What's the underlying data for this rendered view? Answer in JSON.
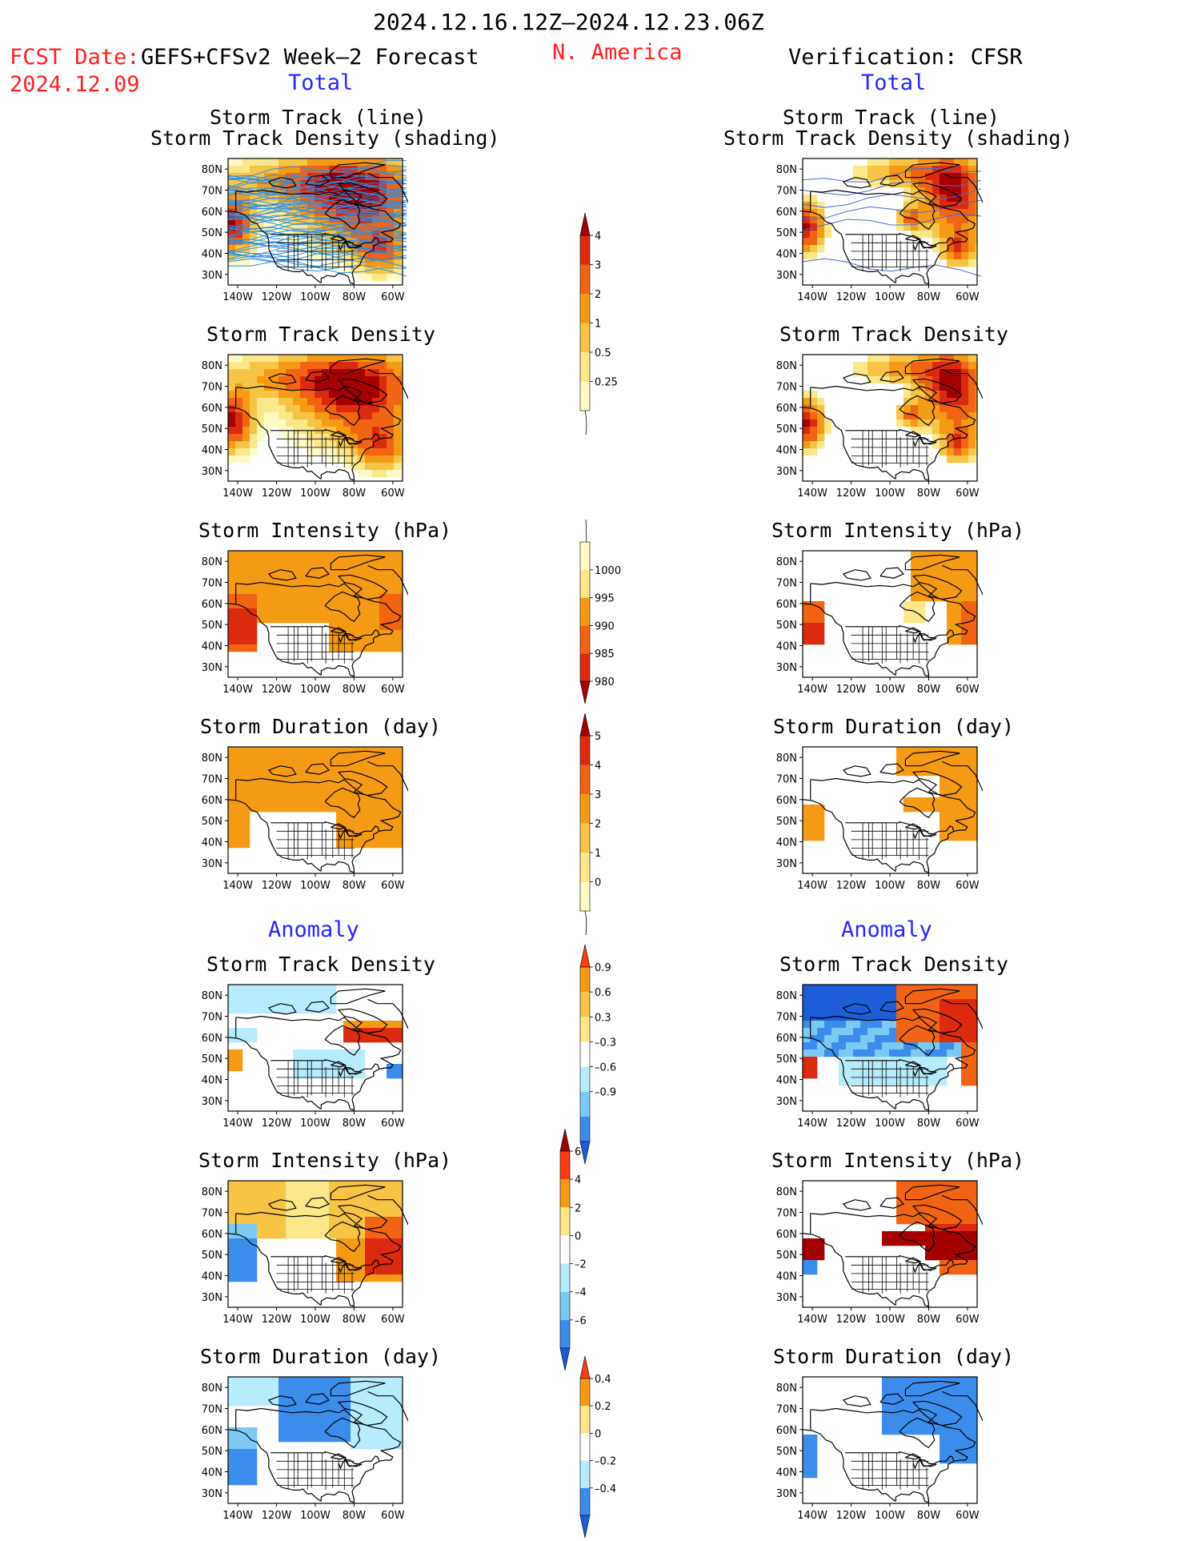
{
  "header": {
    "period": "2024.12.16.12Z–2024.12.23.06Z",
    "region": "N. America",
    "fcst_label": "FCST Date:",
    "fcst_model": "GEFS+CFSv2 Week–2 Forecast",
    "fcst_date": "2024.12.09",
    "verification": "Verification: CFSR"
  },
  "sections": {
    "total": "Total",
    "anomaly": "Anomaly"
  },
  "panel_titles": {
    "track_line": "Storm Track (line)",
    "track_shading": "Storm Track Density (shading)",
    "density": "Storm Track Density",
    "intensity": "Storm Intensity (hPa)",
    "duration": "Storm Duration (day)"
  },
  "map_axes": {
    "lat_labels": [
      "80N",
      "70N",
      "60N",
      "50N",
      "40N",
      "30N"
    ],
    "lon_labels": [
      "140W",
      "120W",
      "100W",
      "80W",
      "60W"
    ]
  },
  "colorbars": [
    {
      "id": "total-density",
      "labels": [
        "4",
        "3",
        "2",
        "1",
        "0.5",
        "0.25"
      ],
      "colors": [
        "#a50000",
        "#dc2a10",
        "#f06414",
        "#f59a14",
        "#f8c446",
        "#fce78a",
        "#fefac6"
      ],
      "tail": "bottom-line"
    },
    {
      "id": "total-intensity",
      "labels": [
        "1000",
        "995",
        "990",
        "985",
        "980"
      ],
      "colors": [
        "#fefac6",
        "#fce78a",
        "#f59a14",
        "#f06414",
        "#dc2a10",
        "#a50000"
      ],
      "tail": "top-line"
    },
    {
      "id": "total-duration",
      "labels": [
        "5",
        "4",
        "3",
        "2",
        "1",
        "0"
      ],
      "colors": [
        "#a50000",
        "#dc2a10",
        "#f06414",
        "#f59a14",
        "#f8c446",
        "#fce78a",
        "#fefac6"
      ],
      "tail": "bottom-line"
    },
    {
      "id": "anom-density",
      "labels": [
        "0.9",
        "0.6",
        "0.3",
        "–0.3",
        "–0.6",
        "–0.9"
      ],
      "colors": [
        "#ff3c14",
        "#f59a14",
        "#f8c446",
        "#fce78a",
        "#ffffff",
        "#b6ecfc",
        "#7ccaf4",
        "#3c8cec",
        "#1c5cd8"
      ],
      "tail": "both"
    },
    {
      "id": "anom-intensity",
      "labels": [
        "6",
        "4",
        "2",
        "0",
        "–2",
        "–4",
        "–6"
      ],
      "colors": [
        "#a50000",
        "#ff3c14",
        "#f59a14",
        "#fce78a",
        "#ffffff",
        "#b6ecfc",
        "#7ccaf4",
        "#3c8cec",
        "#1c5cd8"
      ],
      "tail": "both"
    },
    {
      "id": "anom-duration",
      "labels": [
        "0.4",
        "0.2",
        "0",
        "–0.2",
        "–0.4"
      ],
      "colors": [
        "#ff3c14",
        "#f59a14",
        "#fce78a",
        "#ffffff",
        "#b6ecfc",
        "#3c8cec",
        "#1c5cd8"
      ],
      "tail": "both"
    }
  ],
  "colors": {
    "dark_red": "#a50000",
    "red": "#dc2a10",
    "orange_red": "#f06414",
    "orange": "#f59a14",
    "light_orange": "#f8c446",
    "yellow": "#fce78a",
    "pale_yellow": "#fefac6",
    "light_blue": "#b6ecfc",
    "sky_blue": "#7ccaf4",
    "blue": "#3c8cec",
    "dark_blue": "#1c5cd8",
    "track_line": "#2a8ee6"
  }
}
